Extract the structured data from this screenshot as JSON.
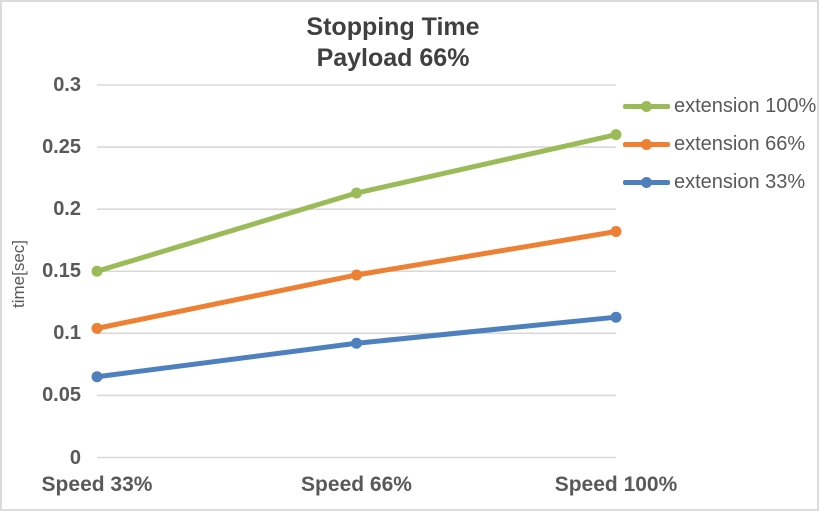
{
  "chart_data": {
    "type": "line",
    "title_lines": [
      "Stopping Time",
      "Payload 66%"
    ],
    "title": "Stopping Time Payload 66%",
    "ylabel": "time[sec]",
    "xlabel": "",
    "categories": [
      "Speed 33%",
      "Speed 66%",
      "Speed 100%"
    ],
    "series": [
      {
        "name": "extension 100%",
        "color": "#9BBB59",
        "values": [
          0.15,
          0.213,
          0.26
        ]
      },
      {
        "name": "extension 66%",
        "color": "#ED8032",
        "values": [
          0.104,
          0.147,
          0.182
        ]
      },
      {
        "name": "extension 33%",
        "color": "#4E80BD",
        "values": [
          0.065,
          0.092,
          0.113
        ]
      }
    ],
    "ylim": [
      0,
      0.3
    ],
    "yticks": [
      0,
      0.05,
      0.1,
      0.15,
      0.2,
      0.25,
      0.3
    ],
    "ytick_labels": [
      "0",
      "0.05",
      "0.1",
      "0.15",
      "0.2",
      "0.25",
      "0.3"
    ],
    "grid": true,
    "grid_color": "#D9D9D9",
    "text_color": "#595959",
    "title_color": "#404040",
    "legend_position": "right",
    "marker": "circle"
  }
}
